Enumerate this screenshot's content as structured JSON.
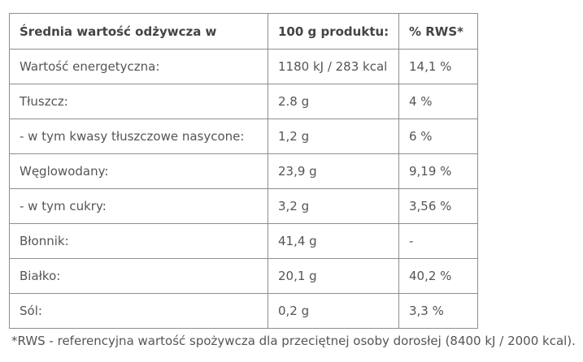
{
  "table": {
    "headers": [
      "Średnia wartość odżywcza w",
      "100 g produktu:",
      "% RWS*"
    ],
    "rows": [
      [
        "Wartość energetyczna:",
        "1180 kJ / 283 kcal",
        "14,1 %"
      ],
      [
        "Tłuszcz:",
        "2.8 g",
        "4 %"
      ],
      [
        "- w tym kwasy tłuszczowe nasycone:",
        "1,2 g",
        "6 %"
      ],
      [
        "Węglowodany:",
        "23,9 g",
        "9,19 %"
      ],
      [
        "- w tym cukry:",
        "3,2 g",
        "3,56 %"
      ],
      [
        "Błonnik:",
        "41,4 g",
        "-"
      ],
      [
        "Białko:",
        "20,1 g",
        "40,2 %"
      ],
      [
        "Sól:",
        "0,2 g",
        "3,3 %"
      ]
    ]
  },
  "footnote": "*RWS - referencyjna wartość spożywcza dla przeciętnej osoby dorosłej (8400 kJ / 2000 kcal)."
}
